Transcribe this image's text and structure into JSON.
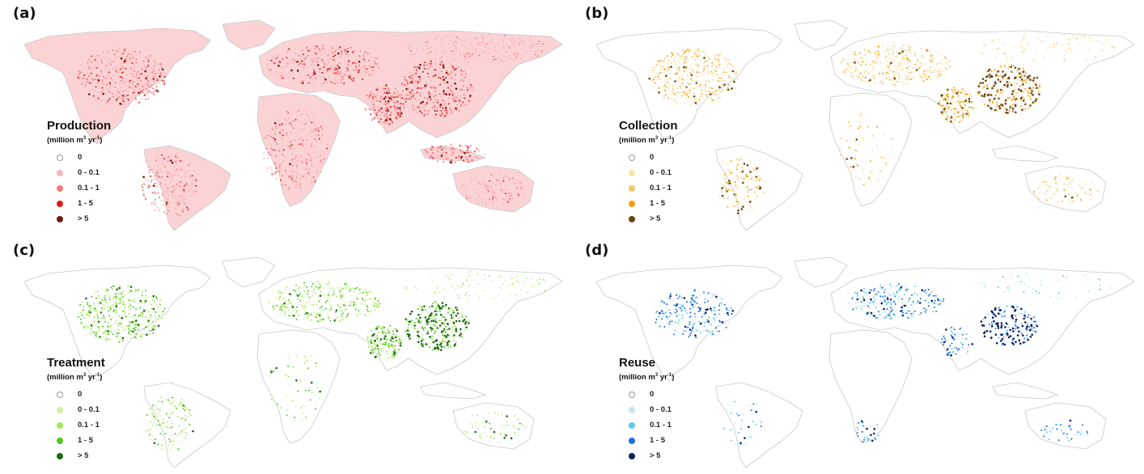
{
  "figure": {
    "unit_prefix": "(million m",
    "unit_mid": " yr",
    "unit_suffix": ")",
    "unit_sup1": "3",
    "unit_sup2": "-1",
    "panels": [
      {
        "label": "(a)",
        "title": "Production",
        "classes": [
          {
            "label": "0",
            "color": "#ffffff"
          },
          {
            "label": "0 - 0.1",
            "color": "#f9b6b8"
          },
          {
            "label": "0.1 - 1",
            "color": "#f47a7e"
          },
          {
            "label": "1 - 5",
            "color": "#e21b1f"
          },
          {
            "label": "> 5",
            "color": "#6b1a0c"
          }
        ]
      },
      {
        "label": "(b)",
        "title": "Collection",
        "classes": [
          {
            "label": "0",
            "color": "#ffffff"
          },
          {
            "label": "0 - 0.1",
            "color": "#fbe3a6"
          },
          {
            "label": "0.1 - 1",
            "color": "#f7c76a"
          },
          {
            "label": "1 - 5",
            "color": "#f0a014"
          },
          {
            "label": "> 5",
            "color": "#6b4413"
          }
        ]
      },
      {
        "label": "(c)",
        "title": "Treatment",
        "classes": [
          {
            "label": "0",
            "color": "#ffffff"
          },
          {
            "label": "0 - 0.1",
            "color": "#cdf3a8"
          },
          {
            "label": "0.1 - 1",
            "color": "#a9e858"
          },
          {
            "label": "1 - 5",
            "color": "#4bc81e"
          },
          {
            "label": "> 5",
            "color": "#1e6a12"
          }
        ]
      },
      {
        "label": "(d)",
        "title": "Reuse",
        "classes": [
          {
            "label": "0",
            "color": "#ffffff"
          },
          {
            "label": "0 - 0.1",
            "color": "#c2e6f7"
          },
          {
            "label": "0.1 - 1",
            "color": "#5cc8f2"
          },
          {
            "label": "1 - 5",
            "color": "#1a6fe0"
          },
          {
            "label": "> 5",
            "color": "#0b1f66"
          }
        ]
      }
    ]
  },
  "chart_data": [
    {
      "type": "map",
      "title": "Production",
      "panel": "(a)",
      "legend_title": "Production (million m3 yr-1)",
      "legend": [
        "0",
        "0 - 0.1",
        "0.1 - 1",
        "1 - 5",
        "> 5"
      ],
      "colors": [
        "#ffffff",
        "#f9b6b8",
        "#f47a7e",
        "#e21b1f",
        "#6b1a0c"
      ],
      "legend_position": "lower-left"
    },
    {
      "type": "map",
      "title": "Collection",
      "panel": "(b)",
      "legend_title": "Collection (million m3 yr-1)",
      "legend": [
        "0",
        "0 - 0.1",
        "0.1 - 1",
        "1 - 5",
        "> 5"
      ],
      "colors": [
        "#ffffff",
        "#fbe3a6",
        "#f7c76a",
        "#f0a014",
        "#6b4413"
      ],
      "legend_position": "lower-left"
    },
    {
      "type": "map",
      "title": "Treatment",
      "panel": "(c)",
      "legend_title": "Treatment (million m3 yr-1)",
      "legend": [
        "0",
        "0 - 0.1",
        "0.1 - 1",
        "1 - 5",
        "> 5"
      ],
      "colors": [
        "#ffffff",
        "#cdf3a8",
        "#a9e858",
        "#4bc81e",
        "#1e6a12"
      ],
      "legend_position": "lower-left"
    },
    {
      "type": "map",
      "title": "Reuse",
      "panel": "(d)",
      "legend_title": "Reuse (million m3 yr-1)",
      "legend": [
        "0",
        "0 - 0.1",
        "0.1 - 1",
        "1 - 5",
        "> 5"
      ],
      "colors": [
        "#ffffff",
        "#c2e6f7",
        "#5cc8f2",
        "#1a6fe0",
        "#0b1f66"
      ],
      "legend_position": "lower-left"
    }
  ]
}
